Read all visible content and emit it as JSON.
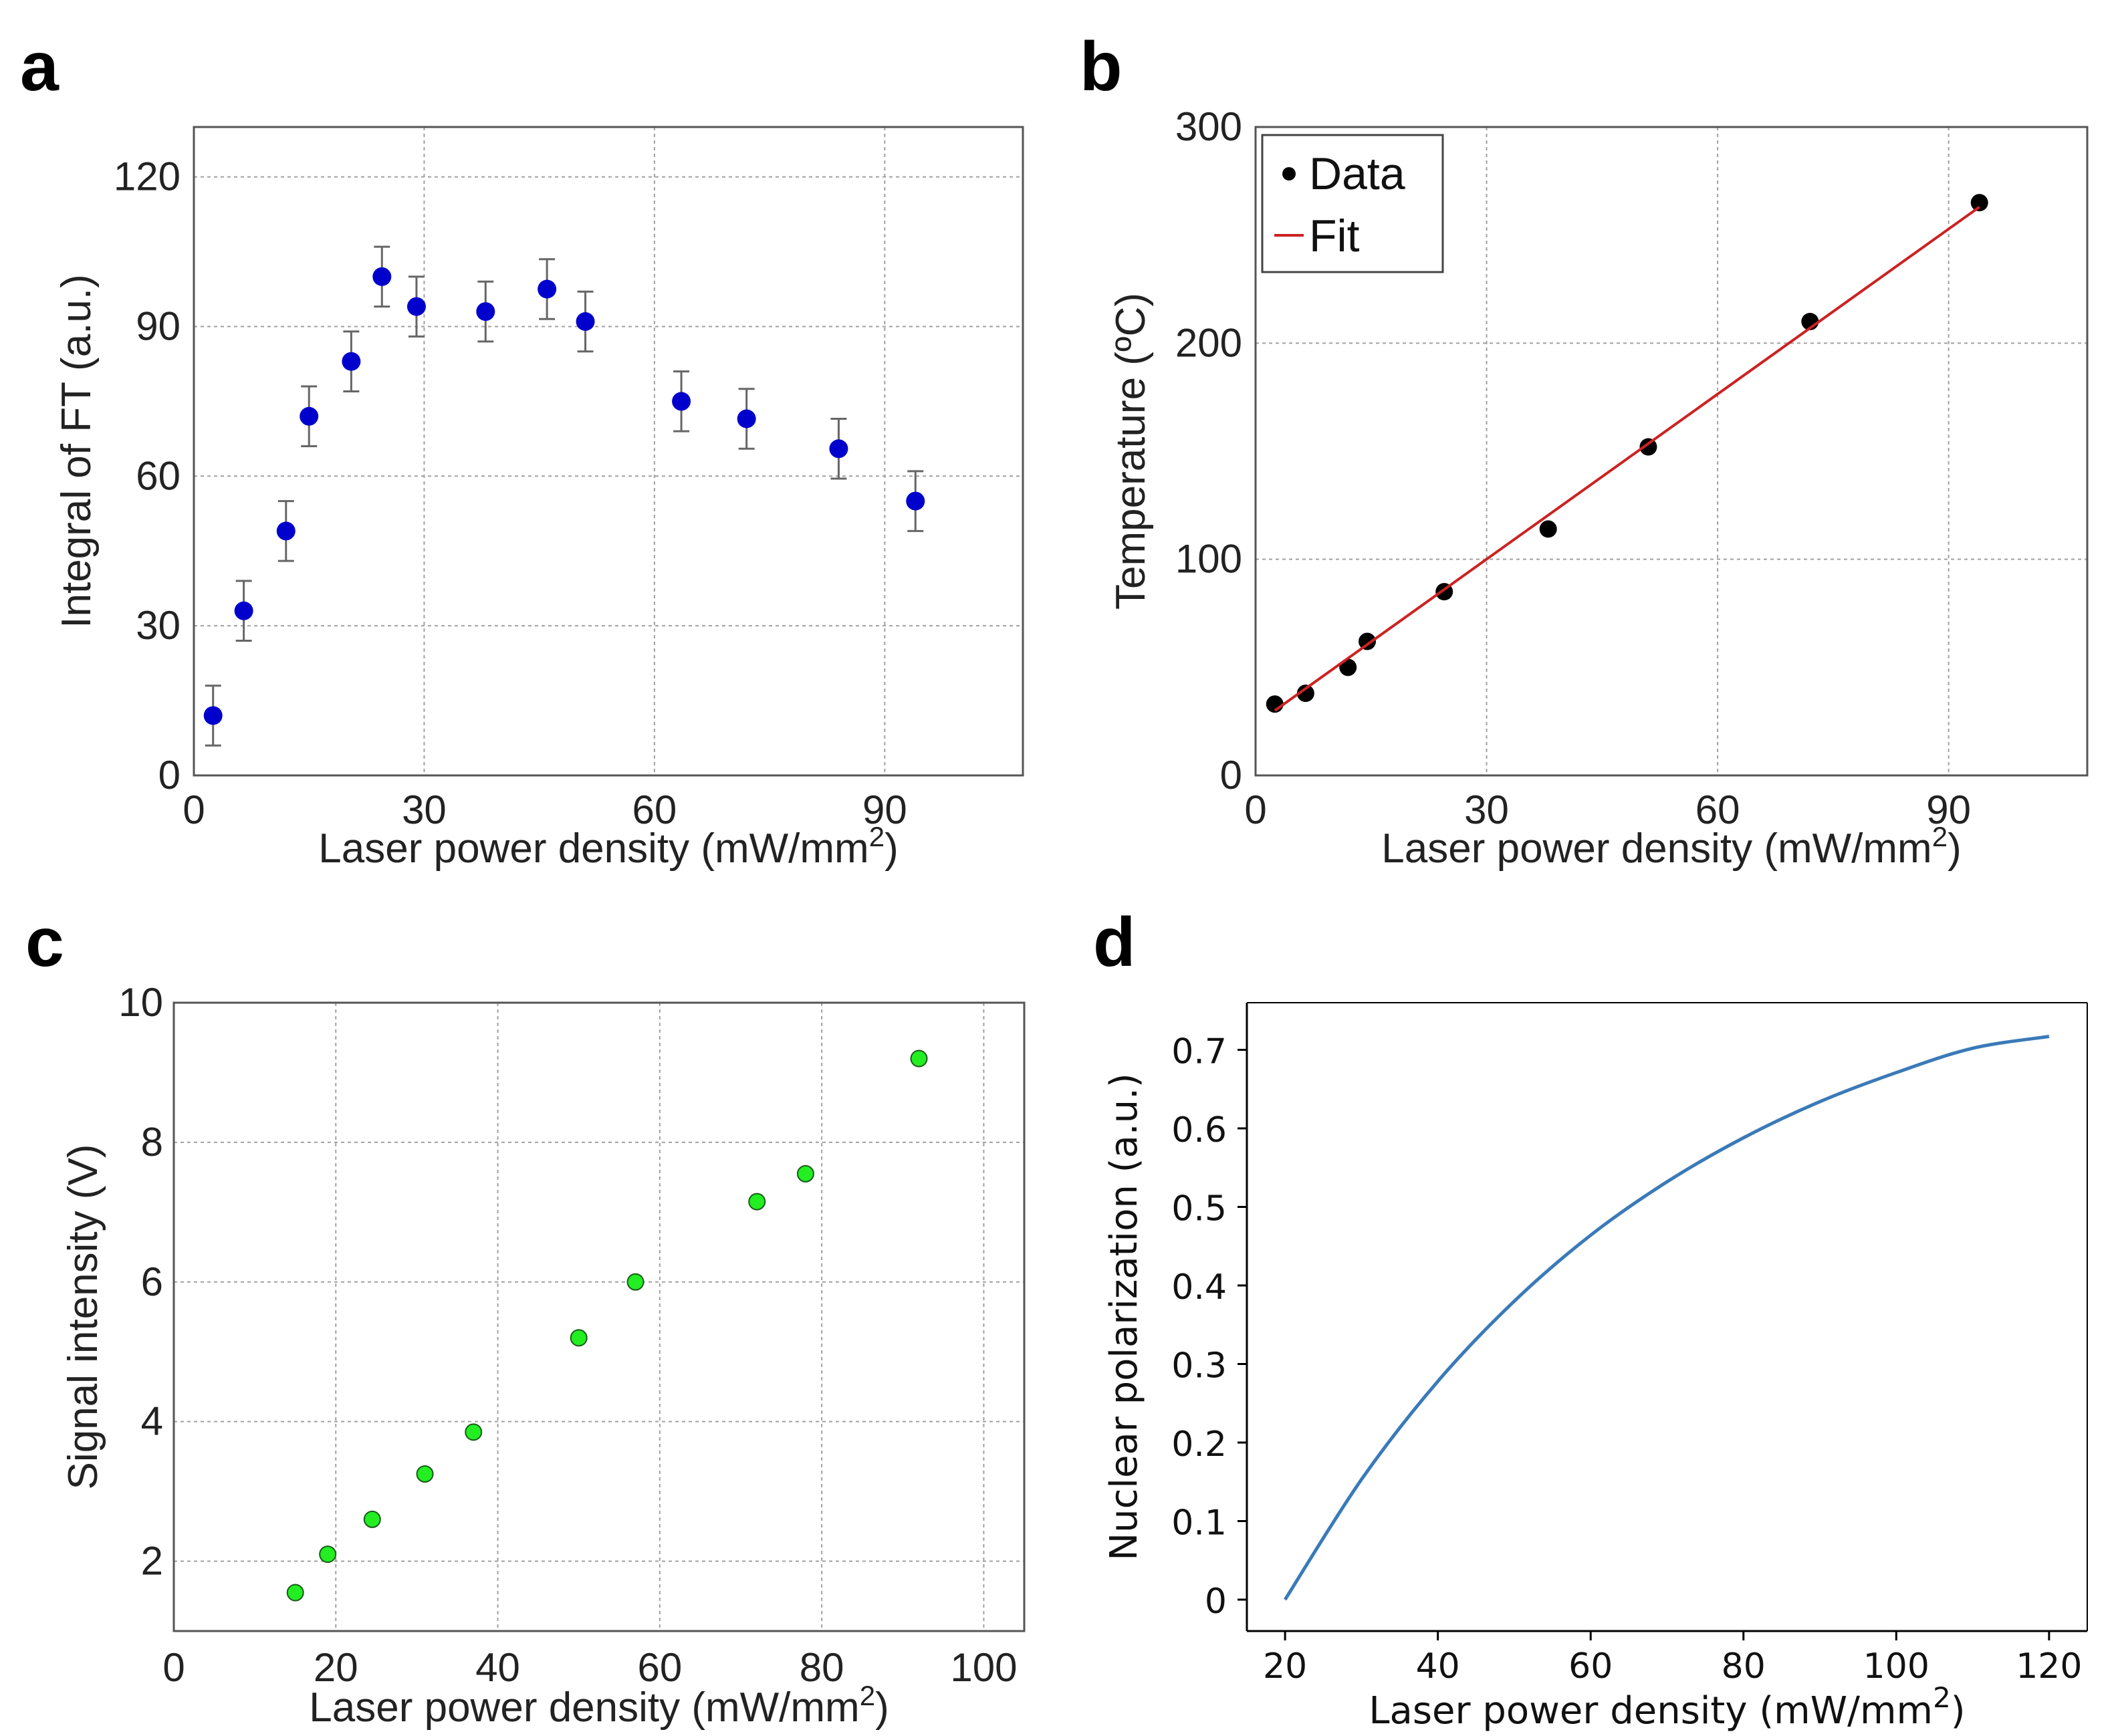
{
  "chart_data": [
    {
      "id": "a",
      "panel_label": "a",
      "type": "scatter",
      "xlabel": "Laser power density (mW/mm",
      "xlabel_sup": "2",
      "xlabel_end": ")",
      "ylabel": "Integral of FT (a.u.)",
      "xlim": [
        0,
        108
      ],
      "ylim": [
        0,
        130
      ],
      "xticks": [
        0,
        30,
        60,
        90
      ],
      "yticks": [
        0,
        30,
        60,
        90,
        120
      ],
      "grid": true,
      "marker_color": "#0000cc",
      "series": [
        {
          "name": "Integral of FT",
          "x": [
            2.5,
            6.5,
            12,
            15,
            20.5,
            24.5,
            29,
            38,
            46,
            51,
            63.5,
            72,
            84,
            94
          ],
          "y": [
            12,
            33,
            49,
            72,
            83,
            100,
            94,
            93,
            97.5,
            91,
            75,
            71.5,
            65.5,
            55
          ],
          "yerr": [
            6,
            6,
            6,
            6,
            6,
            6,
            6,
            6,
            6,
            6,
            6,
            6,
            6,
            6
          ]
        }
      ]
    },
    {
      "id": "b",
      "panel_label": "b",
      "type": "scatter",
      "xlabel": "Laser power density (mW/mm",
      "xlabel_sup": "2",
      "xlabel_end": ")",
      "ylabel": "Temperature (ºC)",
      "xlim": [
        0,
        108
      ],
      "ylim": [
        0,
        300
      ],
      "xticks": [
        0,
        30,
        60,
        90
      ],
      "yticks": [
        0,
        100,
        200,
        300
      ],
      "grid": true,
      "legend": {
        "position": "top-left",
        "entries": [
          "Data",
          "Fit"
        ]
      },
      "series": [
        {
          "name": "Data",
          "color": "#000000",
          "x": [
            2.5,
            6.5,
            12,
            14.5,
            24.5,
            38,
            51,
            72,
            94
          ],
          "y": [
            33,
            38,
            50,
            62,
            85,
            114,
            152,
            210,
            265
          ]
        },
        {
          "name": "Fit",
          "type": "line",
          "color": "#cc2222",
          "x": [
            2.5,
            94
          ],
          "y": [
            30,
            263
          ]
        }
      ]
    },
    {
      "id": "c",
      "panel_label": "c",
      "type": "scatter",
      "xlabel": "Laser power density (mW/mm",
      "xlabel_sup": "2",
      "xlabel_end": ")",
      "ylabel": "Signal intensity (V)",
      "xlim": [
        0,
        105
      ],
      "ylim": [
        1,
        10
      ],
      "xticks": [
        0,
        20,
        40,
        60,
        80,
        100
      ],
      "yticks": [
        2,
        4,
        6,
        8,
        10
      ],
      "grid": true,
      "marker_color": "#22ee22",
      "series": [
        {
          "name": "Signal intensity",
          "x": [
            15,
            19,
            24.5,
            31,
            37,
            50,
            57,
            72,
            78,
            92
          ],
          "y": [
            1.55,
            2.1,
            2.6,
            3.25,
            3.85,
            5.2,
            6.0,
            7.15,
            7.55,
            9.2
          ]
        }
      ]
    },
    {
      "id": "d",
      "panel_label": "d",
      "type": "line",
      "xlabel": "Laser power density (mW/mm",
      "xlabel_sup": "2",
      "xlabel_end": ")",
      "ylabel": "Nuclear polarization (a.u.)",
      "xlim": [
        15,
        125
      ],
      "ylim": [
        -0.04,
        0.76
      ],
      "xticks": [
        20,
        40,
        60,
        80,
        100,
        120
      ],
      "yticks": [
        0,
        0.1,
        0.2,
        0.3,
        0.4,
        0.5,
        0.6,
        0.7
      ],
      "ytick_labels": [
        "0",
        "0.1",
        "0.2",
        "0.3",
        "0.4",
        "0.5",
        "0.6",
        "0.7"
      ],
      "grid": false,
      "line_color": "#3a7ab8",
      "series": [
        {
          "name": "Nuclear polarization",
          "x": [
            20,
            30,
            40,
            50,
            60,
            70,
            80,
            90,
            100,
            110,
            120
          ],
          "y": [
            0,
            0.153,
            0.278,
            0.38,
            0.464,
            0.532,
            0.588,
            0.634,
            0.671,
            0.702,
            0.717
          ]
        }
      ]
    }
  ]
}
